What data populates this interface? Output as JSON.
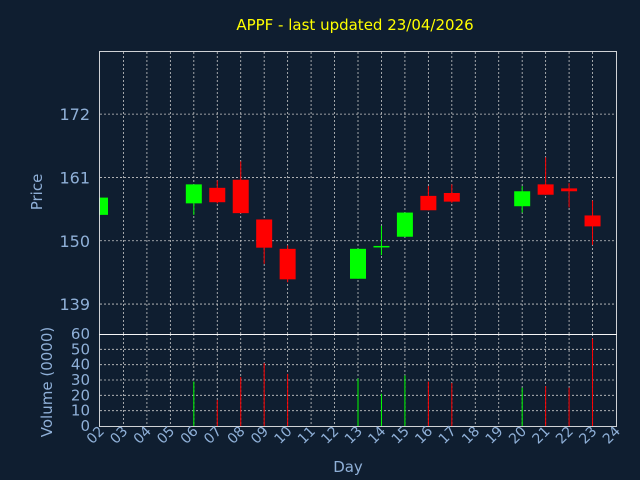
{
  "chart_data": {
    "type": "candlestick",
    "title": "APPF - last updated 23/04/2026",
    "xlabel": "Day",
    "price_ylabel": "Price",
    "volume_ylabel": "Volume (0000)",
    "x_ticks": [
      "02",
      "03",
      "04",
      "05",
      "06",
      "07",
      "08",
      "09",
      "10",
      "11",
      "12",
      "13",
      "14",
      "15",
      "16",
      "17",
      "18",
      "19",
      "20",
      "21",
      "22",
      "23",
      "24"
    ],
    "price_ticks": [
      139,
      150,
      161,
      172
    ],
    "price_ylim": [
      133.8,
      182.8
    ],
    "volume_ticks": [
      0,
      10,
      20,
      30,
      40,
      50,
      60
    ],
    "volume_ylim": [
      0,
      60
    ],
    "grid": true,
    "colors": {
      "up": "#00ff00",
      "down": "#ff0000",
      "title": "#ffff00",
      "axis_text": "#8fb0d8",
      "background": "#0f1e30"
    },
    "candles": [
      {
        "day": "02",
        "open": 154.5,
        "close": 157.5,
        "high": 157.5,
        "low": 154.5,
        "volume": 0
      },
      {
        "day": "06",
        "open": 156.5,
        "close": 159.8,
        "high": 159.8,
        "low": 154.5,
        "volume": 29
      },
      {
        "day": "07",
        "open": 159.2,
        "close": 156.7,
        "high": 160.5,
        "low": 156.5,
        "volume": 17
      },
      {
        "day": "08",
        "open": 160.6,
        "close": 154.8,
        "high": 163.8,
        "low": 154.8,
        "volume": 32
      },
      {
        "day": "09",
        "open": 153.7,
        "close": 148.8,
        "high": 153.7,
        "low": 146.0,
        "volume": 41
      },
      {
        "day": "10",
        "open": 148.6,
        "close": 143.3,
        "high": 149.2,
        "low": 142.8,
        "volume": 34
      },
      {
        "day": "13",
        "open": 143.4,
        "close": 148.6,
        "high": 148.6,
        "low": 143.4,
        "volume": 31
      },
      {
        "day": "14",
        "open": 149.0,
        "close": 149.1,
        "high": 152.6,
        "low": 147.5,
        "volume": 21
      },
      {
        "day": "15",
        "open": 150.7,
        "close": 154.9,
        "high": 154.9,
        "low": 150.7,
        "volume": 33
      },
      {
        "day": "16",
        "open": 157.8,
        "close": 155.3,
        "high": 159.5,
        "low": 155.3,
        "volume": 29
      },
      {
        "day": "17",
        "open": 158.3,
        "close": 156.8,
        "high": 159.8,
        "low": 156.6,
        "volume": 28
      },
      {
        "day": "20",
        "open": 156.0,
        "close": 158.6,
        "high": 159.5,
        "low": 154.9,
        "volume": 25
      },
      {
        "day": "21",
        "open": 159.8,
        "close": 158.0,
        "high": 164.5,
        "low": 158.0,
        "volume": 26
      },
      {
        "day": "22",
        "open": 159.1,
        "close": 158.6,
        "high": 160.0,
        "low": 155.8,
        "volume": 25
      },
      {
        "day": "23",
        "open": 154.4,
        "close": 152.5,
        "high": 157.0,
        "low": 149.3,
        "volume": 57
      }
    ]
  }
}
